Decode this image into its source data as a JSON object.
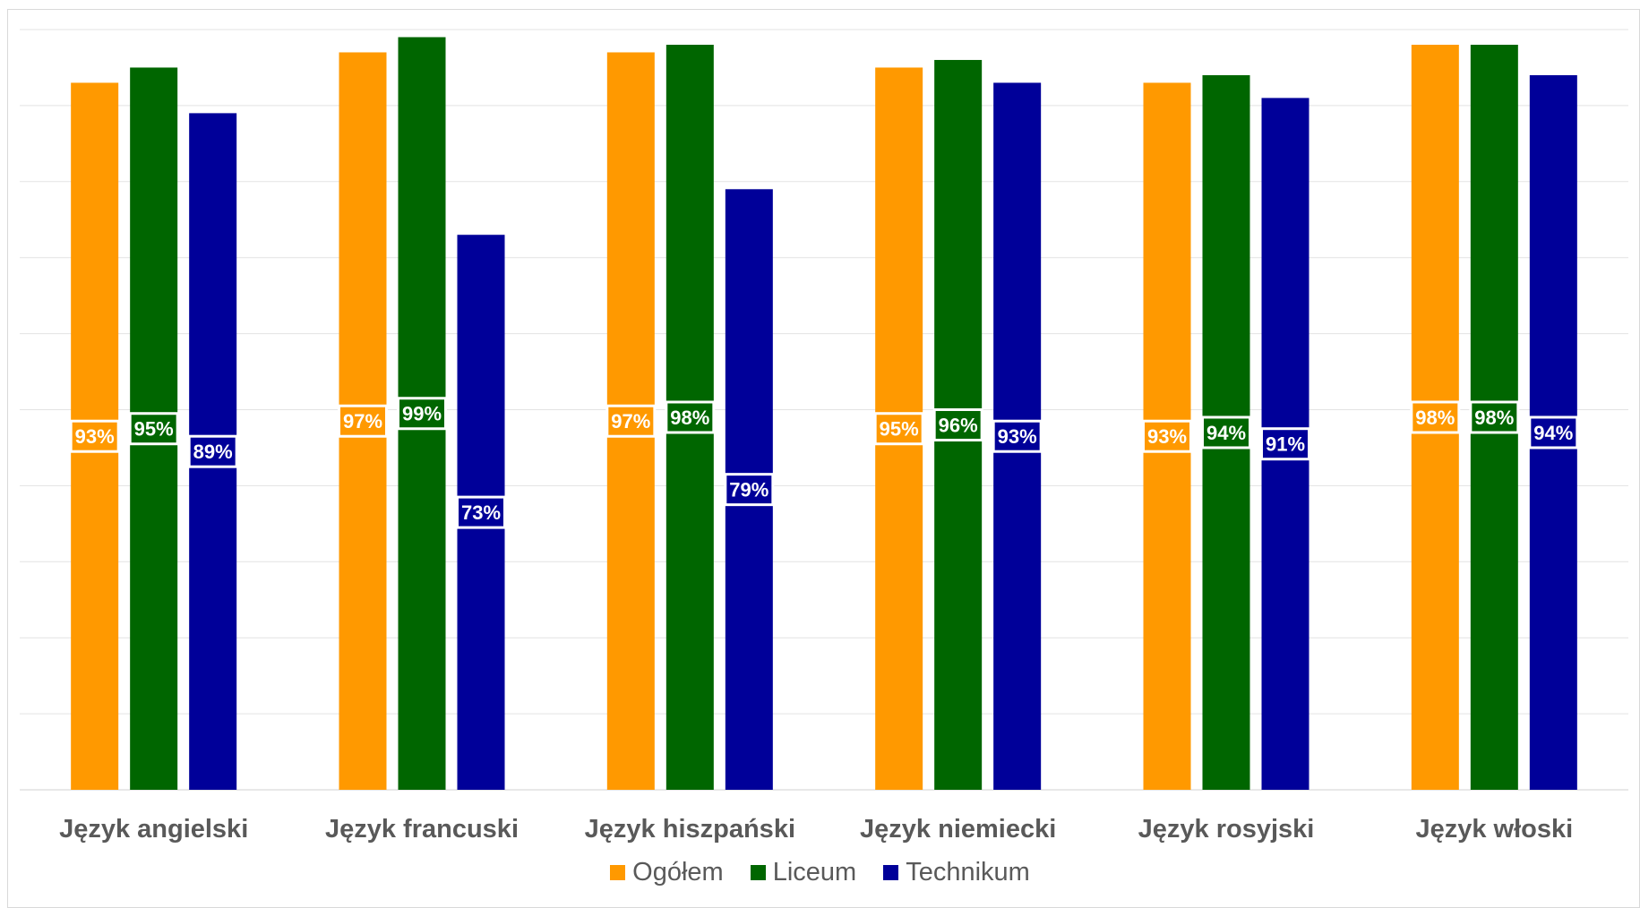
{
  "chart_data": {
    "type": "bar",
    "title": "",
    "xlabel": "",
    "ylabel": "",
    "ylim": [
      0,
      100
    ],
    "grid": true,
    "legend_position": "bottom",
    "categories": [
      "Język angielski",
      "Język francuski",
      "Język hiszpański",
      "Język niemiecki",
      "Język rosyjski",
      "Język włoski"
    ],
    "series": [
      {
        "name": "Ogółem",
        "color": "#FF9900",
        "values": [
          93,
          97,
          97,
          95,
          93,
          98
        ],
        "labels": [
          "93%",
          "97%",
          "97%",
          "95%",
          "93%",
          "98%"
        ]
      },
      {
        "name": "Liceum",
        "color": "#006600",
        "values": [
          95,
          99,
          98,
          96,
          94,
          98
        ],
        "labels": [
          "95%",
          "99%",
          "98%",
          "96%",
          "94%",
          "98%"
        ]
      },
      {
        "name": "Technikum",
        "color": "#000099",
        "values": [
          89,
          73,
          79,
          93,
          91,
          94
        ],
        "labels": [
          "89%",
          "73%",
          "79%",
          "93%",
          "91%",
          "94%"
        ]
      }
    ]
  },
  "legend": {
    "items": [
      {
        "label": "Ogółem",
        "color": "#FF9900"
      },
      {
        "label": "Liceum",
        "color": "#006600"
      },
      {
        "label": "Technikum",
        "color": "#000099"
      }
    ]
  }
}
